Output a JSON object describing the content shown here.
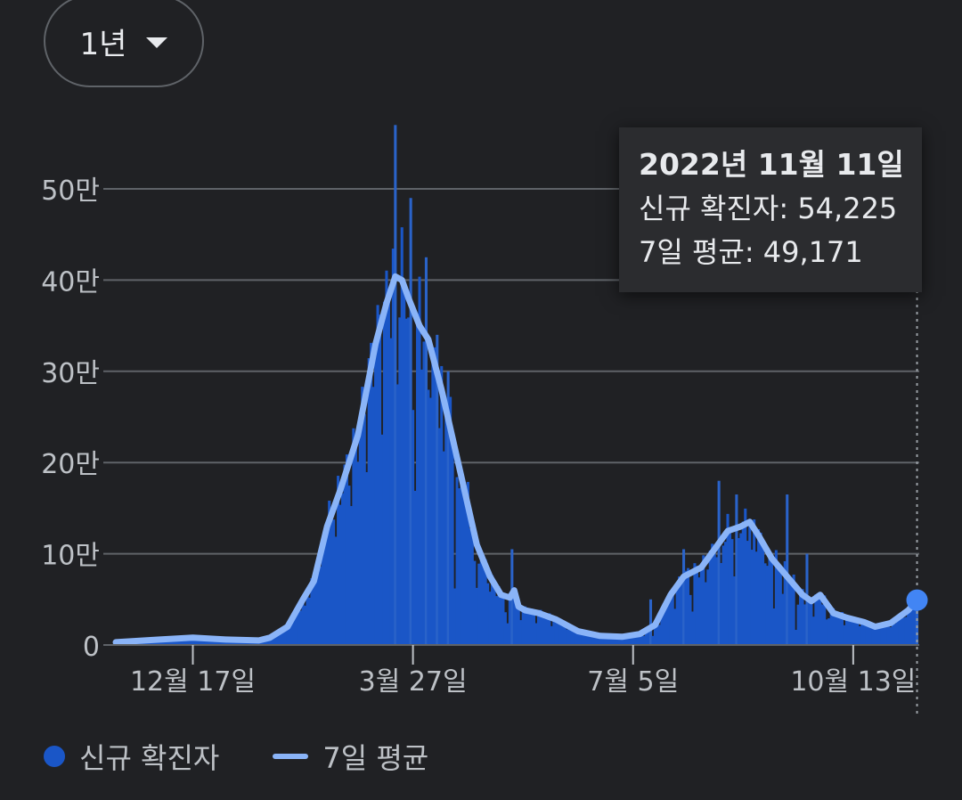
{
  "range_selector": {
    "label": "1년",
    "icon": "caret-down-icon"
  },
  "tooltip": {
    "date": "2022년 11월 11일",
    "new_cases": "신규 확진자: 54,225",
    "avg": "7일 평균: 49,171"
  },
  "legend": {
    "bars": "신규 확진자",
    "line": "7일 평균"
  },
  "colors": {
    "bar": "#1a56c7",
    "bar_dark": "#0d3b94",
    "line": "#8ab4f8",
    "grid": "#5f6368",
    "text": "#bdc1c6"
  },
  "chart_data": {
    "type": "bar",
    "title": "",
    "xlabel": "",
    "ylabel": "",
    "ylim": [
      0,
      570000
    ],
    "y_ticks": [
      {
        "value": 0,
        "label": "0"
      },
      {
        "value": 100000,
        "label": "10만"
      },
      {
        "value": 200000,
        "label": "20만"
      },
      {
        "value": 300000,
        "label": "30만"
      },
      {
        "value": 400000,
        "label": "40만"
      },
      {
        "value": 500000,
        "label": "50만"
      }
    ],
    "x_range_days": [
      0,
      365
    ],
    "x_ticks": [
      {
        "day": 35,
        "label": "12월 17일"
      },
      {
        "day": 135,
        "label": "3월 27일"
      },
      {
        "day": 235,
        "label": "7월 5일"
      },
      {
        "day": 335,
        "label": "10월 13일"
      }
    ],
    "selected_day": 364,
    "series": [
      {
        "name": "7일 평균",
        "type": "line",
        "points": [
          [
            0,
            3000
          ],
          [
            20,
            6000
          ],
          [
            35,
            8000
          ],
          [
            50,
            6000
          ],
          [
            65,
            5000
          ],
          [
            70,
            8000
          ],
          [
            78,
            20000
          ],
          [
            85,
            50000
          ],
          [
            90,
            70000
          ],
          [
            96,
            130000
          ],
          [
            102,
            170000
          ],
          [
            110,
            230000
          ],
          [
            118,
            330000
          ],
          [
            123,
            375000
          ],
          [
            127,
            404000
          ],
          [
            130,
            400000
          ],
          [
            133,
            380000
          ],
          [
            138,
            350000
          ],
          [
            142,
            335000
          ],
          [
            148,
            280000
          ],
          [
            156,
            195000
          ],
          [
            164,
            110000
          ],
          [
            170,
            75000
          ],
          [
            175,
            55000
          ],
          [
            179,
            52000
          ],
          [
            181,
            60000
          ],
          [
            183,
            42000
          ],
          [
            186,
            38000
          ],
          [
            192,
            35000
          ],
          [
            200,
            28000
          ],
          [
            210,
            15000
          ],
          [
            220,
            10000
          ],
          [
            230,
            9000
          ],
          [
            238,
            12000
          ],
          [
            245,
            22000
          ],
          [
            252,
            55000
          ],
          [
            258,
            75000
          ],
          [
            266,
            85000
          ],
          [
            272,
            105000
          ],
          [
            278,
            125000
          ],
          [
            284,
            130000
          ],
          [
            288,
            135000
          ],
          [
            292,
            120000
          ],
          [
            298,
            95000
          ],
          [
            305,
            75000
          ],
          [
            312,
            55000
          ],
          [
            316,
            48000
          ],
          [
            320,
            55000
          ],
          [
            323,
            45000
          ],
          [
            326,
            35000
          ],
          [
            332,
            30000
          ],
          [
            340,
            25000
          ],
          [
            345,
            20000
          ],
          [
            352,
            24000
          ],
          [
            360,
            38000
          ],
          [
            364,
            49171
          ]
        ]
      },
      {
        "name": "신규 확진자",
        "type": "bar",
        "spikes": [
          [
            127,
            570000
          ],
          [
            134,
            490000
          ],
          [
            141,
            425000
          ],
          [
            146,
            340000
          ],
          [
            151,
            300000
          ],
          [
            180,
            105000
          ],
          [
            243,
            50000
          ],
          [
            258,
            105000
          ],
          [
            274,
            180000
          ],
          [
            282,
            165000
          ],
          [
            305,
            165000
          ],
          [
            314,
            100000
          ],
          [
            364,
            54225
          ]
        ],
        "dips": [
          [
            136,
            0.5
          ],
          [
            154,
            0.3
          ],
          [
            164,
            0.5
          ],
          [
            178,
            0.4
          ],
          [
            244,
            0.5
          ],
          [
            262,
            0.5
          ],
          [
            281,
            0.6
          ],
          [
            299,
            0.5
          ],
          [
            309,
            0.3
          ],
          [
            323,
            0.6
          ]
        ]
      }
    ]
  }
}
